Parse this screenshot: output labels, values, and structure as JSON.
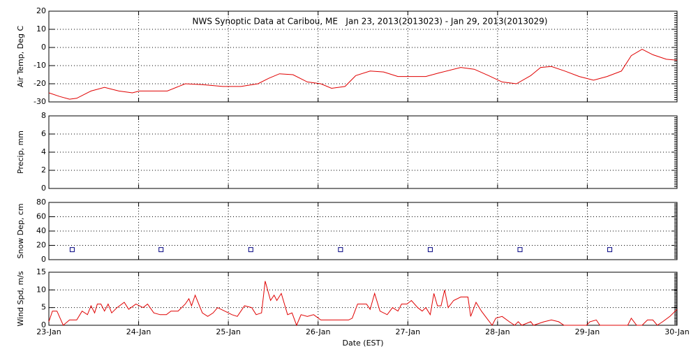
{
  "chart_data": [
    {
      "type": "line",
      "title": "NWS Synoptic Data at Caribou, ME   Jan 23, 2013(2013023) - Jan 29, 2013(2013029)",
      "ylabel": "Air Temp, Deg C",
      "ylim": [
        -30,
        20
      ],
      "yticks": [
        -30,
        -20,
        -10,
        0,
        10,
        20
      ],
      "xlim": [
        23,
        30
      ],
      "xticks": [
        23,
        24,
        25,
        26,
        27,
        28,
        29,
        30
      ],
      "grid": true,
      "color": "#e00000",
      "x": [
        23.0,
        23.12,
        23.23,
        23.31,
        23.47,
        23.62,
        23.78,
        23.93,
        24.01,
        24.32,
        24.52,
        24.71,
        24.94,
        25.14,
        25.33,
        25.45,
        25.57,
        25.72,
        25.88,
        26.03,
        26.15,
        26.3,
        26.42,
        26.58,
        26.73,
        26.89,
        27.04,
        27.2,
        27.35,
        27.59,
        27.74,
        27.9,
        28.05,
        28.21,
        28.37,
        28.48,
        28.6,
        28.75,
        28.91,
        29.07,
        29.22,
        29.38,
        29.49,
        29.61,
        29.73,
        29.88,
        30.0
      ],
      "values": [
        -25,
        -27,
        -28.5,
        -28,
        -24,
        -22,
        -24,
        -25,
        -24,
        -24,
        -20,
        -20.5,
        -21.5,
        -21.5,
        -20,
        -17,
        -14.5,
        -15,
        -19,
        -20,
        -22.5,
        -21.5,
        -15.5,
        -13,
        -13.5,
        -16,
        -16,
        -16,
        -14,
        -11,
        -12,
        -15.5,
        -19,
        -20,
        -15.5,
        -11,
        -10.5,
        -13,
        -16,
        -18,
        -16,
        -13,
        -4.5,
        -1,
        -4,
        -6.5,
        -7
      ]
    },
    {
      "type": "line",
      "ylabel": "Precip, mm",
      "ylim": [
        0,
        8
      ],
      "yticks": [
        0,
        2,
        4,
        6,
        8
      ],
      "xlim": [
        23,
        30
      ],
      "xticks": [
        23,
        24,
        25,
        26,
        27,
        28,
        29,
        30
      ],
      "grid": true
    },
    {
      "type": "scatter",
      "ylabel": "Snow Dep, cm",
      "ylim": [
        0,
        80
      ],
      "yticks": [
        0,
        20,
        40,
        60,
        80
      ],
      "xlim": [
        23,
        30
      ],
      "xticks": [
        23,
        24,
        25,
        26,
        27,
        28,
        29,
        30
      ],
      "grid": true,
      "color": "#000080",
      "x": [
        23.26,
        24.25,
        25.25,
        26.25,
        27.25,
        28.25,
        29.25
      ],
      "values": [
        14,
        14,
        14,
        14,
        14,
        14,
        14
      ]
    },
    {
      "type": "line",
      "ylabel": "Wind Spd, m/s",
      "xlabel": "Date (EST)",
      "ylim": [
        0,
        15
      ],
      "yticks": [
        0,
        5,
        10,
        15
      ],
      "xlim": [
        23,
        30
      ],
      "xticks": [
        {
          "value": 23,
          "label": "23-Jan"
        },
        {
          "value": 24,
          "label": "24-Jan"
        },
        {
          "value": 25,
          "label": "25-Jan"
        },
        {
          "value": 26,
          "label": "26-Jan"
        },
        {
          "value": 27,
          "label": "27-Jan"
        },
        {
          "value": 28,
          "label": "28-Jan"
        },
        {
          "value": 29,
          "label": "29-Jan"
        },
        {
          "value": 30,
          "label": "30-Jan"
        }
      ],
      "grid": true,
      "color": "#e00000",
      "x": [
        23.0,
        23.04,
        23.09,
        23.16,
        23.23,
        23.31,
        23.37,
        23.43,
        23.47,
        23.51,
        23.54,
        23.58,
        23.62,
        23.66,
        23.7,
        23.76,
        23.84,
        23.89,
        23.97,
        24.05,
        24.1,
        24.17,
        24.24,
        24.31,
        24.36,
        24.44,
        24.52,
        24.56,
        24.59,
        24.63,
        24.71,
        24.77,
        24.83,
        24.88,
        24.96,
        25.04,
        25.1,
        25.18,
        25.26,
        25.31,
        25.37,
        25.41,
        25.47,
        25.51,
        25.54,
        25.59,
        25.66,
        25.71,
        25.76,
        25.81,
        25.88,
        25.95,
        26.03,
        26.19,
        26.34,
        26.38,
        26.44,
        26.54,
        26.58,
        26.63,
        26.69,
        26.77,
        26.83,
        26.89,
        26.93,
        26.99,
        27.04,
        27.11,
        27.16,
        27.2,
        27.25,
        27.29,
        27.33,
        27.37,
        27.41,
        27.45,
        27.51,
        27.59,
        27.67,
        27.7,
        27.76,
        27.82,
        27.88,
        27.94,
        27.98,
        28.05,
        28.13,
        28.19,
        28.23,
        28.27,
        28.37,
        28.4,
        28.52,
        28.6,
        28.68,
        28.74,
        28.99,
        29.03,
        29.1,
        29.14,
        29.45,
        29.49,
        29.55,
        29.61,
        29.67,
        29.73,
        29.78,
        29.84,
        29.92,
        30.0
      ],
      "values": [
        1,
        4,
        4,
        0,
        1.5,
        1.5,
        4,
        3,
        5.5,
        3.5,
        6,
        6,
        4,
        6,
        3.5,
        5,
        6.5,
        4.5,
        6,
        5,
        6,
        3.5,
        3,
        3,
        4,
        4,
        6,
        7.5,
        5.5,
        8.5,
        3.5,
        2.5,
        3.5,
        5,
        4,
        3,
        2.5,
        5.5,
        5,
        3,
        3.5,
        12.5,
        7,
        8.5,
        7,
        9,
        3,
        3.5,
        0,
        3,
        2.5,
        3,
        1.5,
        1.5,
        1.5,
        2,
        6,
        6,
        4.5,
        9,
        4,
        3,
        5,
        4,
        6,
        6,
        7,
        5,
        4,
        5,
        3,
        9,
        5.5,
        5.5,
        10,
        5,
        7,
        8,
        8,
        2.5,
        6.5,
        4,
        2,
        0,
        2,
        2.5,
        1,
        0,
        1,
        0,
        1,
        0,
        1,
        1.5,
        1,
        0,
        0,
        1,
        1.5,
        0,
        0,
        2,
        0,
        0,
        1.5,
        1.5,
        0,
        1,
        2.5,
        4.5
      ]
    }
  ]
}
